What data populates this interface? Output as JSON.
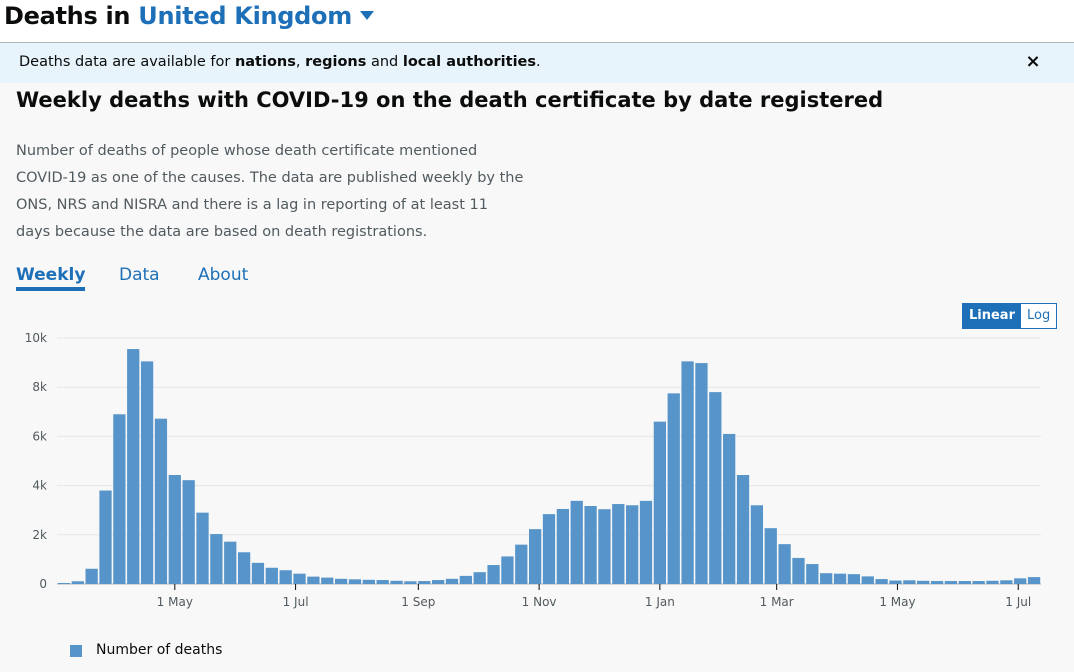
{
  "header": {
    "title_prefix": "Deaths in",
    "location": "United Kingdom",
    "caret_icon": "chevron-down-icon"
  },
  "banner": {
    "text_start": "Deaths data are available for ",
    "link1": "nations",
    "sep1": ", ",
    "link2": "regions",
    "sep2": " and ",
    "link3": "local authorities",
    "text_end": ".",
    "close_label": "×"
  },
  "card": {
    "title": "Weekly deaths with COVID-19 on the death certificate by date registered",
    "description": "Number of deaths of people whose death certificate mentioned COVID-19 as one of the causes. The data are published weekly by the ONS, NRS and NISRA and there is a lag in reporting of at least 11 days because the data are based on death registrations.",
    "tabs": [
      {
        "label": "Weekly",
        "active": true
      },
      {
        "label": "Data",
        "active": false
      },
      {
        "label": "About",
        "active": false
      }
    ],
    "scale_toggle": {
      "linear": "Linear",
      "log": "Log",
      "selected": "Linear"
    }
  },
  "chart_data": {
    "type": "bar",
    "x_start": "2020-03-06",
    "x_step_days": 7,
    "values": [
      40,
      110,
      620,
      3800,
      6900,
      9550,
      9050,
      6720,
      4430,
      4220,
      2900,
      2030,
      1720,
      1290,
      860,
      660,
      560,
      420,
      300,
      260,
      210,
      190,
      170,
      160,
      130,
      110,
      120,
      160,
      210,
      330,
      480,
      770,
      1120,
      1600,
      2230,
      2840,
      3050,
      3380,
      3170,
      3040,
      3250,
      3200,
      3380,
      6600,
      7750,
      9050,
      8980,
      7800,
      6100,
      4430,
      3200,
      2270,
      1620,
      1060,
      810,
      440,
      420,
      400,
      310,
      200,
      140,
      150,
      130,
      120,
      120,
      120,
      120,
      130,
      150,
      230,
      280
    ],
    "ylim": [
      0,
      10000
    ],
    "y_ticks": [
      {
        "value": 0,
        "label": "0"
      },
      {
        "value": 2000,
        "label": "2k"
      },
      {
        "value": 4000,
        "label": "4k"
      },
      {
        "value": 6000,
        "label": "6k"
      },
      {
        "value": 8000,
        "label": "8k"
      },
      {
        "value": 10000,
        "label": "10k"
      }
    ],
    "x_ticks": [
      {
        "date": "2020-05-01",
        "label": "1 May"
      },
      {
        "date": "2020-07-01",
        "label": "1 Jul"
      },
      {
        "date": "2020-09-01",
        "label": "1 Sep"
      },
      {
        "date": "2020-11-01",
        "label": "1 Nov"
      },
      {
        "date": "2021-01-01",
        "label": "1 Jan"
      },
      {
        "date": "2021-03-01",
        "label": "1 Mar"
      },
      {
        "date": "2021-05-01",
        "label": "1 May"
      },
      {
        "date": "2021-07-01",
        "label": "1 Jul"
      }
    ],
    "series_name": "Number of deaths",
    "bar_color": "#5694ca",
    "grid": true,
    "legend_position": "bottom-left"
  }
}
